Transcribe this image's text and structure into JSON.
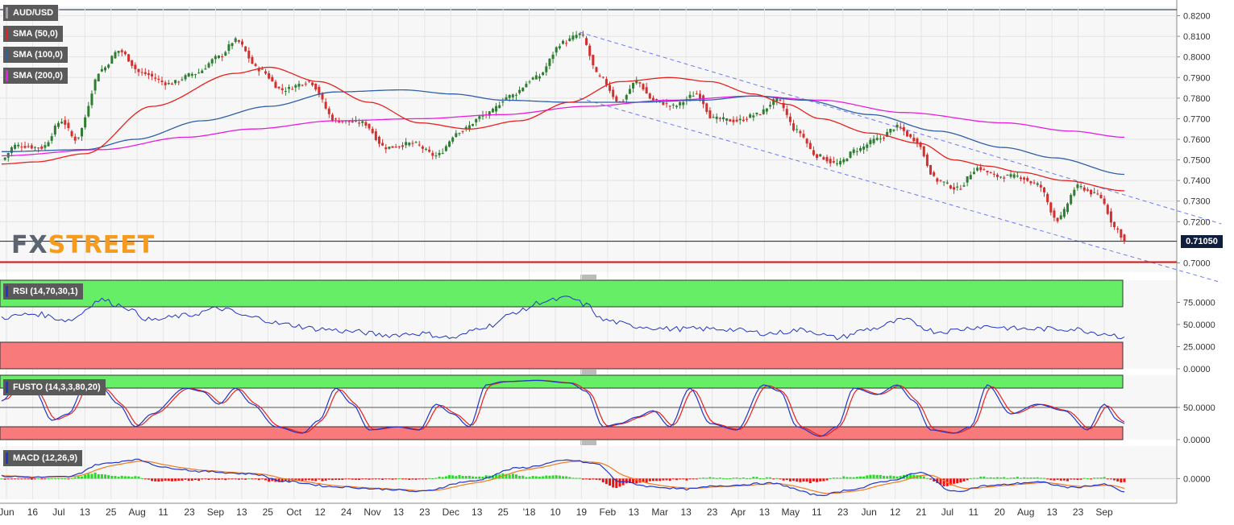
{
  "instrument": "AUD/USD",
  "watermark": {
    "part1": "FX",
    "part2": "STREET"
  },
  "last_price": "0.71050",
  "colors": {
    "up": "#2e7d32",
    "down": "#d32f2f",
    "sma50": "#e8201e",
    "sma100": "#2f5fa8",
    "sma200": "#e81ee0",
    "channel": "#6a7cf0",
    "rsi_line": "#2236c8",
    "fusto_k": "#2236c8",
    "fusto_d": "#e8201e",
    "macd": "#2236c8",
    "signal": "#f07a1e",
    "hist_up": "#22dd22",
    "hist_down": "#ee1111",
    "zone_high": "#66ee66",
    "zone_low": "#f87a7a",
    "support": "#e01010",
    "last_line": "#0f1e3c"
  },
  "indicators": {
    "sma50": "SMA (50,0)",
    "sma100": "SMA (100,0)",
    "sma200": "SMA (200,0)",
    "rsi": "RSI (14,70,30,1)",
    "fusto": "FUSTO (14,3,3,80,20)",
    "macd": "MACD (12,26,9)"
  },
  "chart_data": [
    {
      "type": "candlestick",
      "title": "AUD/USD",
      "y_ticks": [
        "0.8200",
        "0.8100",
        "0.8000",
        "0.7900",
        "0.7800",
        "0.7700",
        "0.7600",
        "0.7500",
        "0.7400",
        "0.7300",
        "0.7200",
        "0.7000"
      ],
      "ylim": [
        0.6955,
        0.8245
      ],
      "support_level": 0.7004,
      "last_price": 0.7105,
      "x_labels": [
        "Jun",
        "16",
        "Jul",
        "13",
        "25",
        "Aug",
        "11",
        "23",
        "Sep",
        "13",
        "25",
        "Oct",
        "12",
        "24",
        "Nov",
        "13",
        "23",
        "Dec",
        "13",
        "25",
        "'18",
        "10",
        "19",
        "Feb",
        "13",
        "Mar",
        "13",
        "23",
        "Apr",
        "13",
        "May",
        "11",
        "23",
        "Jun",
        "12",
        "21",
        "Jul",
        "11",
        "20",
        "Aug",
        "13",
        "23",
        "Sep"
      ],
      "close_anchors": [
        [
          0,
          0.75
        ],
        [
          4,
          0.757
        ],
        [
          12,
          0.756
        ],
        [
          18,
          0.769
        ],
        [
          22,
          0.76
        ],
        [
          30,
          0.794
        ],
        [
          35,
          0.803
        ],
        [
          42,
          0.792
        ],
        [
          50,
          0.787
        ],
        [
          58,
          0.792
        ],
        [
          65,
          0.8
        ],
        [
          70,
          0.808
        ],
        [
          77,
          0.794
        ],
        [
          84,
          0.784
        ],
        [
          92,
          0.788
        ],
        [
          100,
          0.769
        ],
        [
          108,
          0.768
        ],
        [
          115,
          0.756
        ],
        [
          123,
          0.758
        ],
        [
          130,
          0.752
        ],
        [
          137,
          0.764
        ],
        [
          145,
          0.772
        ],
        [
          152,
          0.781
        ],
        [
          160,
          0.79
        ],
        [
          168,
          0.807
        ],
        [
          173,
          0.811
        ],
        [
          179,
          0.79
        ],
        [
          185,
          0.778
        ],
        [
          190,
          0.788
        ],
        [
          195,
          0.779
        ],
        [
          201,
          0.776
        ],
        [
          208,
          0.782
        ],
        [
          213,
          0.77
        ],
        [
          220,
          0.769
        ],
        [
          226,
          0.772
        ],
        [
          232,
          0.779
        ],
        [
          238,
          0.764
        ],
        [
          244,
          0.752
        ],
        [
          250,
          0.748
        ],
        [
          256,
          0.755
        ],
        [
          262,
          0.76
        ],
        [
          268,
          0.766
        ],
        [
          273,
          0.76
        ],
        [
          280,
          0.74
        ],
        [
          286,
          0.736
        ],
        [
          292,
          0.746
        ],
        [
          298,
          0.742
        ],
        [
          304,
          0.742
        ],
        [
          310,
          0.738
        ],
        [
          316,
          0.721
        ],
        [
          322,
          0.737
        ],
        [
          328,
          0.733
        ],
        [
          334,
          0.716
        ],
        [
          336,
          0.7105
        ]
      ],
      "sma50_anchors": [
        [
          0,
          0.748
        ],
        [
          10,
          0.749
        ],
        [
          25,
          0.753
        ],
        [
          45,
          0.776
        ],
        [
          70,
          0.792
        ],
        [
          80,
          0.795
        ],
        [
          95,
          0.788
        ],
        [
          110,
          0.778
        ],
        [
          125,
          0.768
        ],
        [
          140,
          0.765
        ],
        [
          155,
          0.769
        ],
        [
          170,
          0.778
        ],
        [
          185,
          0.788
        ],
        [
          200,
          0.79
        ],
        [
          212,
          0.788
        ],
        [
          225,
          0.782
        ],
        [
          235,
          0.777
        ],
        [
          245,
          0.77
        ],
        [
          260,
          0.763
        ],
        [
          275,
          0.758
        ],
        [
          285,
          0.75
        ],
        [
          295,
          0.747
        ],
        [
          305,
          0.744
        ],
        [
          318,
          0.74
        ],
        [
          336,
          0.735
        ]
      ],
      "sma100_anchors": [
        [
          0,
          0.754
        ],
        [
          25,
          0.755
        ],
        [
          40,
          0.76
        ],
        [
          60,
          0.769
        ],
        [
          80,
          0.776
        ],
        [
          100,
          0.783
        ],
        [
          120,
          0.784
        ],
        [
          135,
          0.782
        ],
        [
          150,
          0.779
        ],
        [
          170,
          0.778
        ],
        [
          190,
          0.778
        ],
        [
          210,
          0.779
        ],
        [
          225,
          0.781
        ],
        [
          240,
          0.779
        ],
        [
          260,
          0.772
        ],
        [
          280,
          0.764
        ],
        [
          300,
          0.756
        ],
        [
          315,
          0.751
        ],
        [
          336,
          0.743
        ]
      ],
      "sma200_anchors": [
        [
          0,
          0.752
        ],
        [
          30,
          0.755
        ],
        [
          55,
          0.761
        ],
        [
          75,
          0.765
        ],
        [
          100,
          0.769
        ],
        [
          125,
          0.77
        ],
        [
          150,
          0.772
        ],
        [
          175,
          0.776
        ],
        [
          200,
          0.779
        ],
        [
          225,
          0.781
        ],
        [
          245,
          0.779
        ],
        [
          270,
          0.773
        ],
        [
          300,
          0.768
        ],
        [
          320,
          0.764
        ],
        [
          336,
          0.761
        ]
      ],
      "channel_upper": [
        [
          173,
          0.812
        ],
        [
          336,
          0.733
        ]
      ],
      "channel_lower": [
        [
          173,
          0.78
        ],
        [
          336,
          0.704
        ]
      ]
    },
    {
      "type": "line",
      "title": "RSI (14,70,30,1)",
      "y_ticks": [
        "75.0000",
        "50.0000",
        "25.0000",
        "0.0000"
      ],
      "ylim": [
        0,
        100
      ],
      "levels": [
        70,
        30
      ],
      "anchors": [
        [
          0,
          58
        ],
        [
          10,
          62
        ],
        [
          20,
          55
        ],
        [
          30,
          78
        ],
        [
          35,
          72
        ],
        [
          45,
          55
        ],
        [
          55,
          60
        ],
        [
          65,
          68
        ],
        [
          75,
          58
        ],
        [
          85,
          50
        ],
        [
          95,
          45
        ],
        [
          105,
          42
        ],
        [
          115,
          38
        ],
        [
          125,
          40
        ],
        [
          135,
          35
        ],
        [
          145,
          48
        ],
        [
          155,
          65
        ],
        [
          162,
          76
        ],
        [
          170,
          80
        ],
        [
          175,
          72
        ],
        [
          180,
          55
        ],
        [
          190,
          48
        ],
        [
          200,
          45
        ],
        [
          215,
          45
        ],
        [
          230,
          40
        ],
        [
          240,
          44
        ],
        [
          250,
          35
        ],
        [
          260,
          45
        ],
        [
          270,
          55
        ],
        [
          280,
          42
        ],
        [
          295,
          48
        ],
        [
          305,
          45
        ],
        [
          320,
          45
        ],
        [
          330,
          40
        ],
        [
          336,
          36
        ]
      ]
    },
    {
      "type": "line",
      "title": "FUSTO (14,3,3,80,20)",
      "y_ticks": [
        "50.0000",
        "0.0000"
      ],
      "ylim": [
        0,
        100
      ],
      "levels": [
        80,
        20
      ],
      "k_anchors": [
        [
          0,
          60
        ],
        [
          5,
          85
        ],
        [
          10,
          75
        ],
        [
          15,
          30
        ],
        [
          20,
          40
        ],
        [
          25,
          85
        ],
        [
          30,
          80
        ],
        [
          35,
          55
        ],
        [
          40,
          20
        ],
        [
          45,
          40
        ],
        [
          55,
          80
        ],
        [
          60,
          75
        ],
        [
          65,
          55
        ],
        [
          70,
          80
        ],
        [
          75,
          55
        ],
        [
          82,
          20
        ],
        [
          90,
          10
        ],
        [
          95,
          30
        ],
        [
          100,
          80
        ],
        [
          105,
          55
        ],
        [
          110,
          15
        ],
        [
          118,
          20
        ],
        [
          125,
          15
        ],
        [
          130,
          55
        ],
        [
          135,
          40
        ],
        [
          140,
          20
        ],
        [
          145,
          85
        ],
        [
          150,
          90
        ],
        [
          160,
          92
        ],
        [
          170,
          88
        ],
        [
          175,
          75
        ],
        [
          180,
          20
        ],
        [
          185,
          25
        ],
        [
          190,
          35
        ],
        [
          195,
          45
        ],
        [
          200,
          20
        ],
        [
          206,
          80
        ],
        [
          212,
          25
        ],
        [
          220,
          15
        ],
        [
          228,
          85
        ],
        [
          233,
          75
        ],
        [
          238,
          20
        ],
        [
          245,
          5
        ],
        [
          250,
          20
        ],
        [
          255,
          80
        ],
        [
          262,
          70
        ],
        [
          268,
          85
        ],
        [
          273,
          60
        ],
        [
          278,
          15
        ],
        [
          285,
          10
        ],
        [
          290,
          20
        ],
        [
          295,
          85
        ],
        [
          302,
          40
        ],
        [
          310,
          55
        ],
        [
          318,
          45
        ],
        [
          325,
          15
        ],
        [
          330,
          55
        ],
        [
          334,
          30
        ],
        [
          336,
          25
        ]
      ]
    },
    {
      "type": "line",
      "title": "MACD (12,26,9)",
      "y_ticks": [
        "0.0000"
      ],
      "ylim": [
        -0.0035,
        0.0055
      ],
      "macd_anchors": [
        [
          0,
          0.0004
        ],
        [
          10,
          0.0002
        ],
        [
          20,
          0.0003
        ],
        [
          30,
          0.0025
        ],
        [
          40,
          0.0032
        ],
        [
          50,
          0.0018
        ],
        [
          60,
          0.0012
        ],
        [
          75,
          0.0008
        ],
        [
          85,
          -0.0005
        ],
        [
          100,
          -0.0014
        ],
        [
          115,
          -0.0018
        ],
        [
          125,
          -0.0022
        ],
        [
          140,
          -0.0005
        ],
        [
          155,
          0.0018
        ],
        [
          170,
          0.0031
        ],
        [
          178,
          0.0025
        ],
        [
          185,
          -0.0005
        ],
        [
          195,
          -0.0014
        ],
        [
          205,
          -0.0018
        ],
        [
          215,
          -0.0012
        ],
        [
          230,
          -0.0008
        ],
        [
          245,
          -0.0028
        ],
        [
          255,
          -0.0018
        ],
        [
          265,
          -0.0004
        ],
        [
          275,
          0.001
        ],
        [
          285,
          -0.0022
        ],
        [
          295,
          -0.0012
        ],
        [
          310,
          -0.0006
        ],
        [
          320,
          -0.0015
        ],
        [
          330,
          -0.001
        ],
        [
          336,
          -0.0022
        ]
      ]
    }
  ]
}
